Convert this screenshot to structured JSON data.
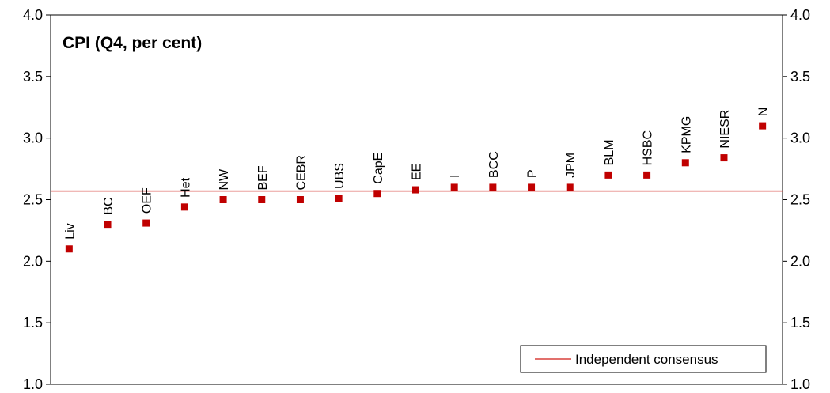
{
  "chart_data": {
    "type": "scatter",
    "title": "CPI (Q4, per cent)",
    "xlabel": "",
    "ylabel": "",
    "ylim": [
      1.0,
      4.0
    ],
    "yticks": [
      "1.0",
      "1.5",
      "2.0",
      "2.5",
      "3.0",
      "3.5",
      "4.0"
    ],
    "grid": false,
    "categories": [
      "Liv",
      "BC",
      "OEF",
      "Het",
      "NW",
      "BEF",
      "CEBR",
      "UBS",
      "CapE",
      "EE",
      "I",
      "BCC",
      "P",
      "JPM",
      "BLM",
      "HSBC",
      "KPMG",
      "NIESR",
      "N"
    ],
    "values": [
      2.1,
      2.3,
      2.31,
      2.44,
      2.5,
      2.5,
      2.5,
      2.51,
      2.55,
      2.58,
      2.6,
      2.6,
      2.6,
      2.6,
      2.7,
      2.7,
      2.8,
      2.84,
      3.1
    ],
    "marker_color": "#c00000",
    "consensus": {
      "name": "Independent consensus",
      "value": 2.57,
      "color": "#d9413c"
    },
    "legend": "bottom-right"
  }
}
